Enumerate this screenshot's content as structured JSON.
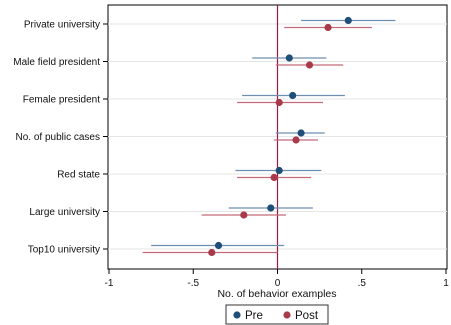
{
  "chart_data": {
    "type": "coefficient-plot",
    "title": "",
    "xlabel": "No. of behavior examples",
    "ylabel": "",
    "xlim": [
      -1,
      1
    ],
    "xticks": [
      -1,
      -0.5,
      0,
      0.5,
      1
    ],
    "xtick_labels": [
      "-1",
      "-.5",
      "0",
      ".5",
      "1"
    ],
    "grid": "horizontal",
    "legend_position": "bottom-center",
    "reference_line": {
      "x": 0,
      "color": "#9b1b47"
    },
    "categories": [
      "Private university",
      "Male field president",
      "Female president",
      "No. of public cases",
      "Red state",
      "Large university",
      "Top10 university"
    ],
    "series": [
      {
        "name": "Pre",
        "color": "#1f4e79",
        "ci_color": "#6f8fb0",
        "estimates": [
          0.42,
          0.07,
          0.09,
          0.14,
          0.01,
          -0.04,
          -0.35
        ],
        "ci_low": [
          0.14,
          -0.15,
          -0.21,
          -0.01,
          -0.25,
          -0.29,
          -0.75
        ],
        "ci_high": [
          0.7,
          0.29,
          0.4,
          0.28,
          0.26,
          0.21,
          0.04
        ]
      },
      {
        "name": "Post",
        "color": "#a83a4a",
        "ci_color": "#c46a78",
        "estimates": [
          0.3,
          0.19,
          0.01,
          0.11,
          -0.02,
          -0.2,
          -0.39
        ],
        "ci_low": [
          0.04,
          -0.01,
          -0.24,
          -0.02,
          -0.24,
          -0.45,
          -0.8
        ],
        "ci_high": [
          0.56,
          0.39,
          0.27,
          0.24,
          0.2,
          0.05,
          0.0
        ]
      }
    ]
  }
}
